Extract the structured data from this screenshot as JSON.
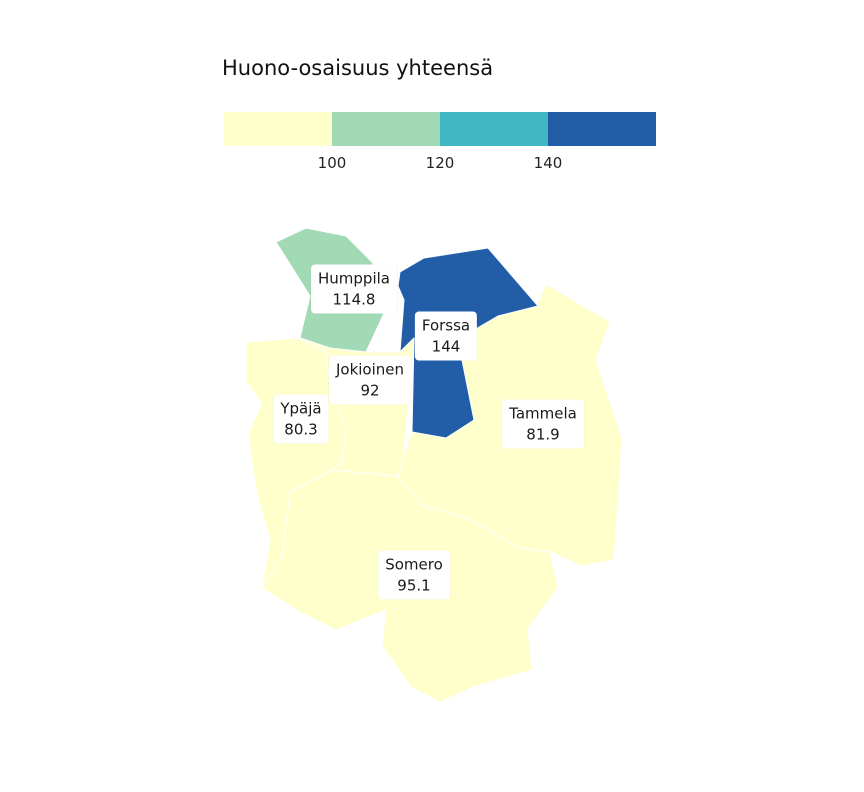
{
  "legend": {
    "title": "Huono-osaisuus yhteensä",
    "bins": [
      {
        "color": "#FFFFCC"
      },
      {
        "color": "#A1DAB4"
      },
      {
        "color": "#41B6C4"
      },
      {
        "color": "#225EA8"
      }
    ],
    "ticks": [
      "100",
      "120",
      "140"
    ]
  },
  "municipalities": [
    {
      "id": "humppila",
      "name": "Humppila",
      "value": "114.8",
      "color": "#A1DAB4"
    },
    {
      "id": "forssa",
      "name": "Forssa",
      "value": "144",
      "color": "#225EA8"
    },
    {
      "id": "jokioinen",
      "name": "Jokioinen",
      "value": "92",
      "color": "#FFFFCC"
    },
    {
      "id": "ypaja",
      "name": "Ypäjä",
      "value": "80.3",
      "color": "#FFFFCC"
    },
    {
      "id": "tammela",
      "name": "Tammela",
      "value": "81.9",
      "color": "#FFFFCC"
    },
    {
      "id": "somero",
      "name": "Somero",
      "value": "95.1",
      "color": "#FFFFCC"
    }
  ]
}
